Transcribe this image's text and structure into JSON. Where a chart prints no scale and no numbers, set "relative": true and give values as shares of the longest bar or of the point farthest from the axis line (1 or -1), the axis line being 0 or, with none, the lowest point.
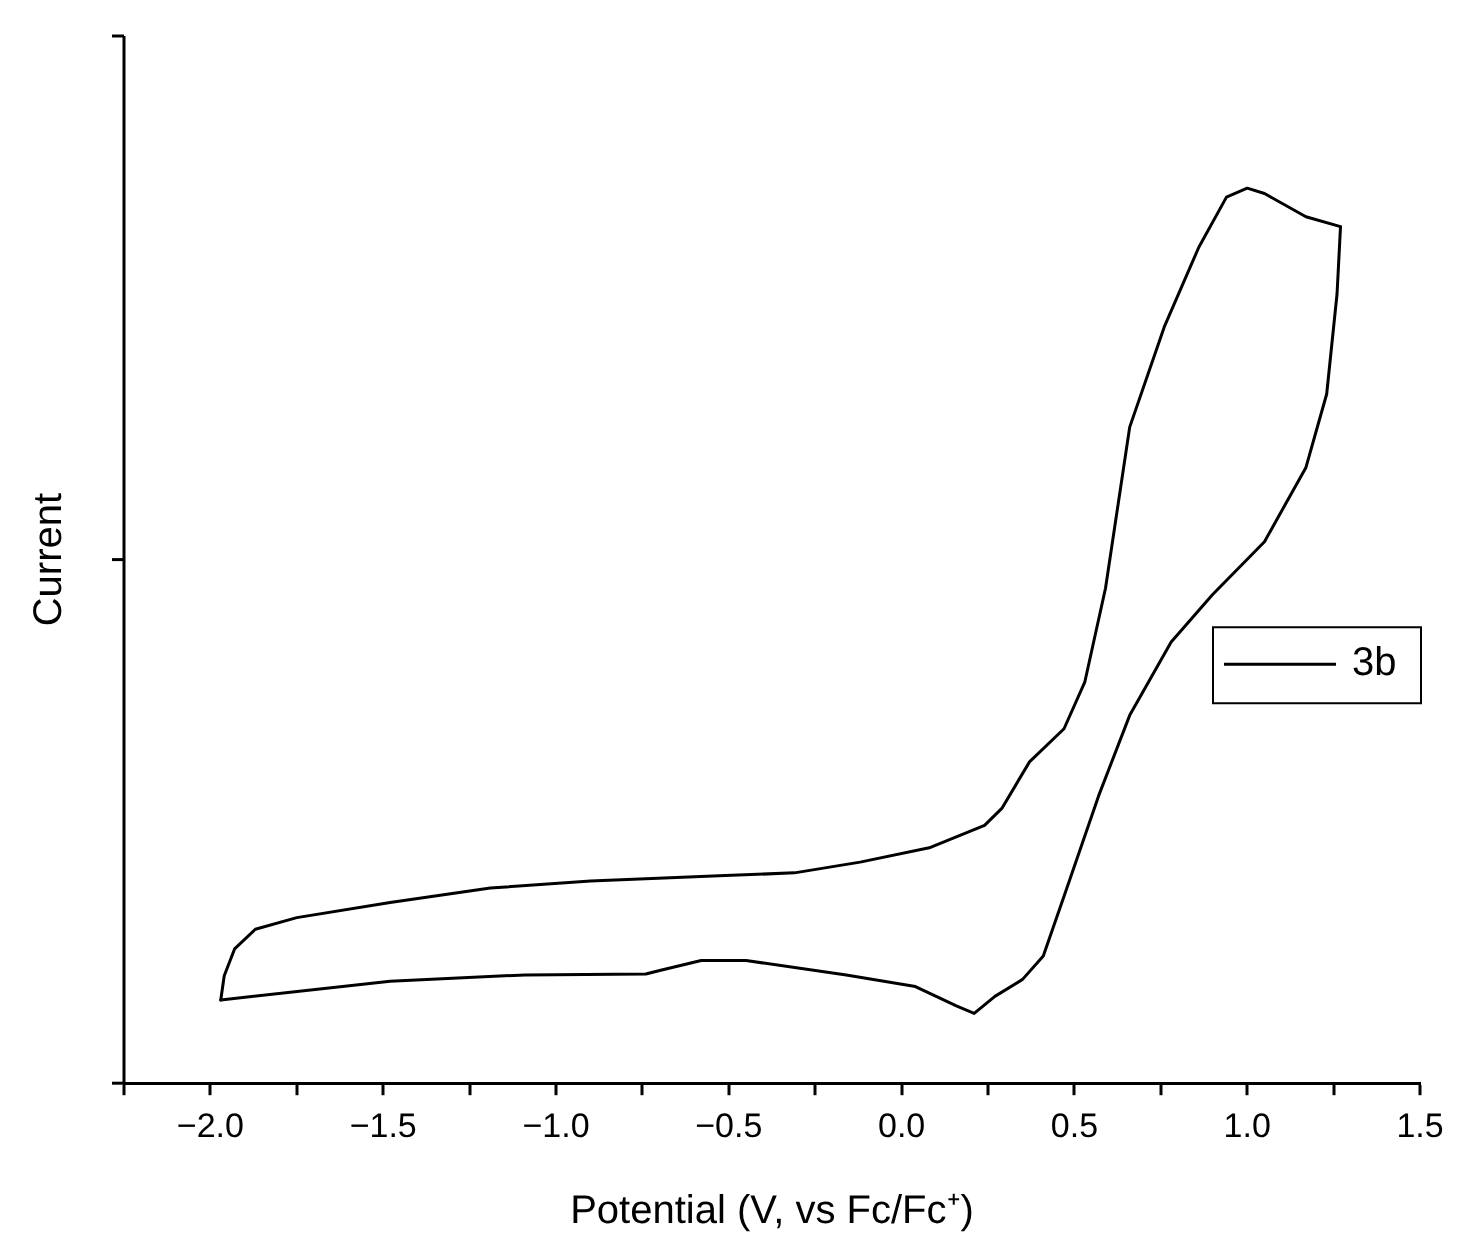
{
  "chart_data": {
    "type": "line",
    "xlabel": "Potential (V, vs Fc/Fc⁺)",
    "ylabel": "Current",
    "relative": true,
    "xlim": [
      -2.25,
      1.5
    ],
    "xticks": [
      {
        "value": -2.25,
        "label": null
      },
      {
        "value": -2,
        "label": "−2.0"
      },
      {
        "value": -1.75,
        "label": null
      },
      {
        "value": -1.5,
        "label": "−1.5"
      },
      {
        "value": -1.25,
        "label": null
      },
      {
        "value": -1,
        "label": "−1.0"
      },
      {
        "value": -0.75,
        "label": null
      },
      {
        "value": -0.5,
        "label": "−0.5"
      },
      {
        "value": -0.25,
        "label": null
      },
      {
        "value": 0,
        "label": "0.0"
      },
      {
        "value": 0.25,
        "label": null
      },
      {
        "value": 0.5,
        "label": "0.5"
      },
      {
        "value": 0.75,
        "label": null
      },
      {
        "value": 1,
        "label": "1.0"
      },
      {
        "value": 1.25,
        "label": null
      },
      {
        "value": 1.5,
        "label": "1.5"
      }
    ],
    "grid": false,
    "legend": "right",
    "marker": "none",
    "line_style": "solid",
    "series": [
      {
        "name": "3b",
        "color": "#000000",
        "x": [
          -1.97,
          -1.96,
          -1.93,
          -1.87,
          -1.75,
          -1.48,
          -1.19,
          -0.9,
          -0.51,
          -0.31,
          -0.12,
          0.08,
          0.24,
          0.29,
          0.37,
          0.47,
          0.53,
          0.59,
          0.66,
          0.76,
          0.86,
          0.94,
          1.0,
          1.05,
          1.17,
          1.27
        ],
        "values": [
          0.093,
          0.12,
          0.15,
          0.172,
          0.185,
          0.202,
          0.218,
          0.226,
          0.232,
          0.235,
          0.247,
          0.263,
          0.288,
          0.307,
          0.359,
          0.396,
          0.448,
          0.553,
          0.733,
          0.845,
          0.934,
          0.99,
          1.0,
          0.994,
          0.968,
          0.957
        ]
      },
      {
        "color": "#000000",
        "x": [
          -1.97,
          -1.48,
          -1.09,
          -0.74,
          -0.7,
          -0.58,
          -0.45,
          -0.16,
          0.04,
          0.16,
          0.21,
          0.27,
          0.35,
          0.41,
          0.47,
          0.57,
          0.66,
          0.78,
          0.9,
          1.05,
          1.17,
          1.23,
          1.26,
          1.27
        ],
        "values": [
          0.093,
          0.114,
          0.121,
          0.122,
          0.126,
          0.137,
          0.137,
          0.121,
          0.108,
          0.086,
          0.078,
          0.097,
          0.116,
          0.142,
          0.209,
          0.321,
          0.411,
          0.493,
          0.546,
          0.605,
          0.688,
          0.77,
          0.882,
          0.957
        ]
      }
    ]
  }
}
